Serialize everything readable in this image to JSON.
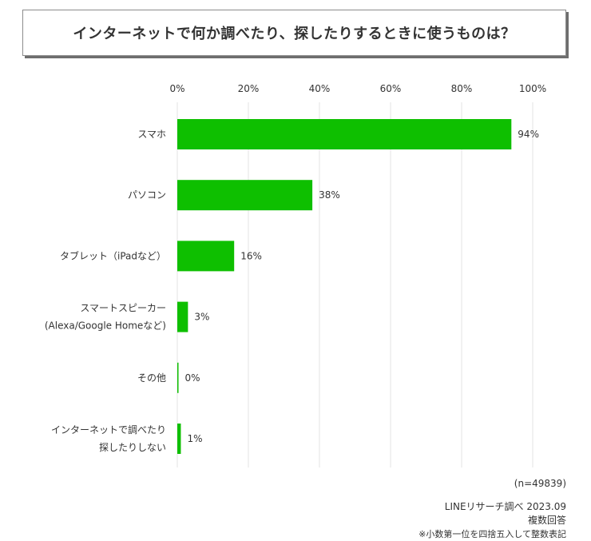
{
  "title": "インターネットで何か調べたり、探したりするときに使うものは？",
  "chart_data": {
    "type": "bar",
    "orientation": "horizontal",
    "categories": [
      [
        "スマホ"
      ],
      [
        "パソコン"
      ],
      [
        "タブレット（iPadなど）"
      ],
      [
        "スマートスピーカー",
        "(Alexa/Google Homeなど)"
      ],
      [
        "その他"
      ],
      [
        "インターネットで調べたり",
        "探したりしない"
      ]
    ],
    "values": [
      94,
      38,
      16,
      3,
      0,
      1
    ],
    "value_labels": [
      "94%",
      "38%",
      "16%",
      "3%",
      "0%",
      "1%"
    ],
    "xlim": [
      0,
      100
    ],
    "ticks": [
      0,
      20,
      40,
      60,
      80,
      100
    ],
    "tick_labels": [
      "0%",
      "20%",
      "40%",
      "60%",
      "80%",
      "100%"
    ],
    "axis_position": "top",
    "grid": true,
    "bar_color": "#0ebf00",
    "grid_color": "#e3e3e3"
  },
  "footer": {
    "sample": "(n=49839)",
    "source": "LINEリサーチ調べ 2023.09",
    "answer_type": "複数回答",
    "note": "※小数第一位を四捨五入して整数表記"
  }
}
